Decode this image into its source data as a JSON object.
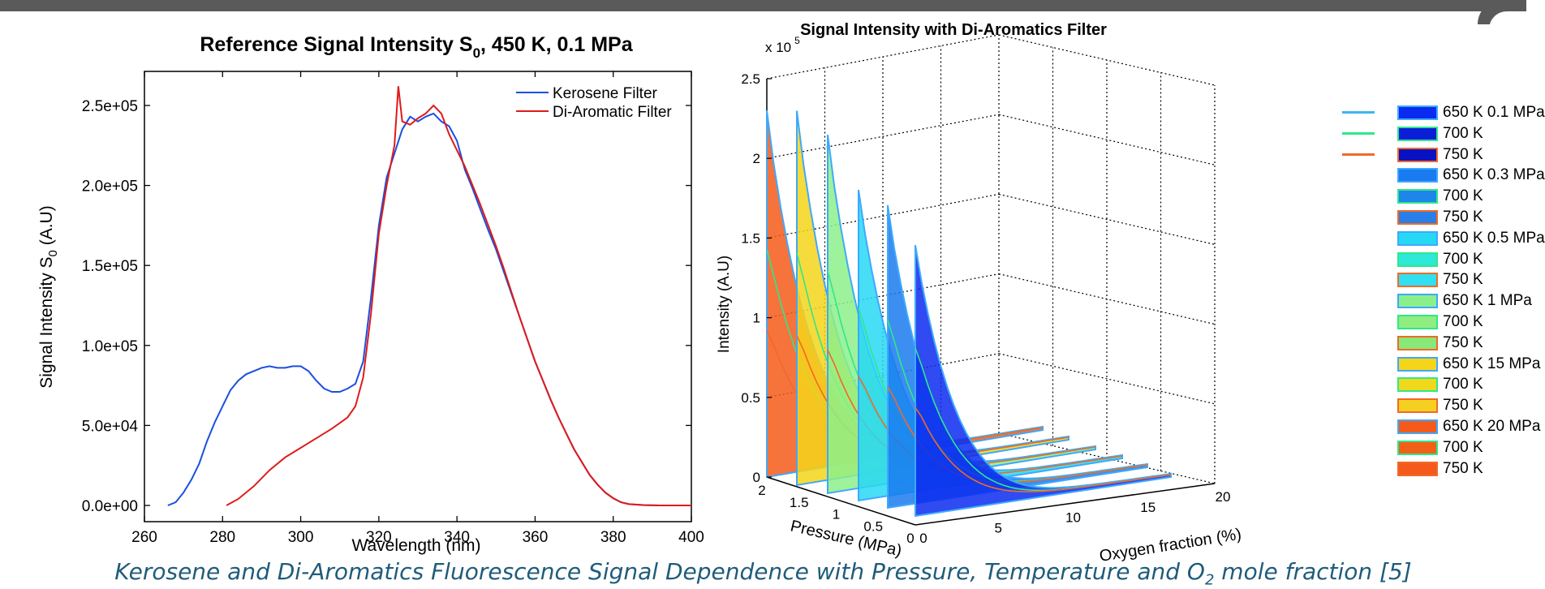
{
  "caption": {
    "text_pre": "Kerosene and Di-Aromatics Fluorescence Signal Dependence with Pressure, Temperature and O",
    "text_sub": "2",
    "text_post": " mole fraction [5]"
  },
  "chart_data": [
    {
      "type": "line",
      "title": "Reference Signal Intensity S",
      "title_sub": "0",
      "title_post": ", 450 K, 0.1 MPa",
      "xlabel": "Wavelength (nm)",
      "ylabel": "Signal Intensity S",
      "ylabel_sub": "0",
      "ylabel_post": " (A.U)",
      "xlim": [
        260,
        400
      ],
      "ylim": [
        0,
        270000
      ],
      "x_ticks": [
        "260",
        "280",
        "300",
        "320",
        "340",
        "360",
        "380",
        "400"
      ],
      "y_ticks": [
        "0.0e+00",
        "5.0e+04",
        "1.0e+05",
        "1.5e+05",
        "2.0e+05",
        "2.5e+05"
      ],
      "legend_position": "top-right",
      "grid": false,
      "series": [
        {
          "name": "Kerosene Filter",
          "color": "#1a4fe0",
          "points": [
            [
              266,
              0
            ],
            [
              268,
              2000
            ],
            [
              270,
              8000
            ],
            [
              272,
              16000
            ],
            [
              274,
              26000
            ],
            [
              276,
              40000
            ],
            [
              278,
              52000
            ],
            [
              280,
              62000
            ],
            [
              282,
              72000
            ],
            [
              284,
              78000
            ],
            [
              286,
              82000
            ],
            [
              288,
              84000
            ],
            [
              290,
              86000
            ],
            [
              292,
              87000
            ],
            [
              294,
              86000
            ],
            [
              296,
              86000
            ],
            [
              298,
              87000
            ],
            [
              300,
              87000
            ],
            [
              302,
              84000
            ],
            [
              304,
              78000
            ],
            [
              306,
              73000
            ],
            [
              308,
              71000
            ],
            [
              310,
              71000
            ],
            [
              312,
              73000
            ],
            [
              314,
              76000
            ],
            [
              316,
              90000
            ],
            [
              318,
              130000
            ],
            [
              320,
              175000
            ],
            [
              322,
              205000
            ],
            [
              324,
              220000
            ],
            [
              326,
              235000
            ],
            [
              328,
              243000
            ],
            [
              330,
              240000
            ],
            [
              332,
              243000
            ],
            [
              334,
              245000
            ],
            [
              336,
              240000
            ],
            [
              338,
              237000
            ],
            [
              340,
              228000
            ],
            [
              342,
              210000
            ],
            [
              344,
              198000
            ],
            [
              346,
              185000
            ],
            [
              348,
              172000
            ],
            [
              350,
              160000
            ],
            [
              352,
              146000
            ],
            [
              354,
              132000
            ],
            [
              356,
              118000
            ],
            [
              358,
              104000
            ],
            [
              360,
              90000
            ],
            [
              362,
              78000
            ],
            [
              364,
              66000
            ],
            [
              366,
              55000
            ],
            [
              368,
              45000
            ],
            [
              370,
              35000
            ],
            [
              372,
              27000
            ],
            [
              374,
              19000
            ],
            [
              376,
              13000
            ],
            [
              378,
              8000
            ],
            [
              380,
              4500
            ],
            [
              382,
              2000
            ],
            [
              384,
              800
            ],
            [
              388,
              200
            ],
            [
              392,
              0
            ],
            [
              400,
              0
            ]
          ]
        },
        {
          "name": "Di-Aromatic Filter",
          "color": "#e01a1a",
          "points": [
            [
              281,
              0
            ],
            [
              284,
              4000
            ],
            [
              288,
              12000
            ],
            [
              292,
              22000
            ],
            [
              296,
              30000
            ],
            [
              300,
              36000
            ],
            [
              304,
              42000
            ],
            [
              308,
              48000
            ],
            [
              312,
              55000
            ],
            [
              314,
              62000
            ],
            [
              316,
              80000
            ],
            [
              318,
              120000
            ],
            [
              320,
              170000
            ],
            [
              322,
              200000
            ],
            [
              324,
              225000
            ],
            [
              325,
              262000
            ],
            [
              326,
              240000
            ],
            [
              328,
              238000
            ],
            [
              330,
              242000
            ],
            [
              332,
              245000
            ],
            [
              334,
              250000
            ],
            [
              336,
              245000
            ],
            [
              338,
              232000
            ],
            [
              340,
              222000
            ],
            [
              342,
              212000
            ],
            [
              344,
              200000
            ],
            [
              346,
              188000
            ],
            [
              348,
              175000
            ],
            [
              350,
              162000
            ],
            [
              352,
              148000
            ],
            [
              354,
              133000
            ],
            [
              356,
              118000
            ],
            [
              358,
              104000
            ],
            [
              360,
              90000
            ],
            [
              362,
              78000
            ],
            [
              364,
              66000
            ],
            [
              366,
              55000
            ],
            [
              368,
              45000
            ],
            [
              370,
              35000
            ],
            [
              372,
              27000
            ],
            [
              374,
              19000
            ],
            [
              376,
              13000
            ],
            [
              378,
              8000
            ],
            [
              380,
              4500
            ],
            [
              382,
              2000
            ],
            [
              384,
              800
            ],
            [
              388,
              200
            ],
            [
              392,
              0
            ],
            [
              400,
              0
            ]
          ]
        }
      ]
    },
    {
      "type": "area",
      "title": "Signal Intensity with Di-Aromatics Filter",
      "zlabel": "Intensity (A.U)",
      "z_multiplier": "x 10",
      "z_multiplier_exp": "5",
      "pressure_label": "Pressure (MPa)",
      "oxygen_label": "Oxygen fraction (%)",
      "z_ticks": [
        "0",
        "0.5",
        "1",
        "1.5",
        "2",
        "2.5"
      ],
      "pressure_ticks": [
        "2",
        "1.5",
        "1",
        "0.5",
        "0"
      ],
      "oxygen_ticks": [
        "0",
        "5",
        "10",
        "15",
        "20"
      ],
      "zlim": [
        0,
        2.5
      ],
      "grid": true,
      "legend_position": "right",
      "slice_peaks": [
        2.3,
        2.35,
        2.25,
        1.95,
        1.9,
        1.7
      ],
      "lines_legend": [
        {
          "color": "#3db5f0"
        },
        {
          "color": "#2ee88a"
        },
        {
          "color": "#f06a28"
        }
      ],
      "legend": [
        {
          "label": "650 K 0.1 MPa",
          "fill": "#0a2bef",
          "border": "#3da9ff"
        },
        {
          "label": "700 K",
          "fill": "#0a1ed8",
          "border": "#2ee88a"
        },
        {
          "label": "750 K",
          "fill": "#0812c2",
          "border": "#f06a28"
        },
        {
          "label": "650 K 0.3 MPa",
          "fill": "#1a7aef",
          "border": "#3da9ff"
        },
        {
          "label": "700 K",
          "fill": "#1e86ea",
          "border": "#2ee88a"
        },
        {
          "label": "750 K",
          "fill": "#2a7ee8",
          "border": "#f06a28"
        },
        {
          "label": "650 K 0.5 MPa",
          "fill": "#27d8f5",
          "border": "#3da9ff"
        },
        {
          "label": "700 K",
          "fill": "#2ee8d8",
          "border": "#2ee88a"
        },
        {
          "label": "750 K",
          "fill": "#30e0f0",
          "border": "#f06a28"
        },
        {
          "label": "650 K 1 MPa",
          "fill": "#8cf08a",
          "border": "#3da9ff"
        },
        {
          "label": "700 K",
          "fill": "#90ee80",
          "border": "#2ee88a"
        },
        {
          "label": "750 K",
          "fill": "#88e878",
          "border": "#f06a28"
        },
        {
          "label": "650 K 15 MPa",
          "fill": "#f5d51a",
          "border": "#3da9ff"
        },
        {
          "label": "700 K",
          "fill": "#f0d81c",
          "border": "#2ee88a"
        },
        {
          "label": "750 K",
          "fill": "#f5d020",
          "border": "#f06a28"
        },
        {
          "label": "650 K 20 MPa",
          "fill": "#f55a1a",
          "border": "#3da9ff"
        },
        {
          "label": "700 K",
          "fill": "#f26018",
          "border": "#2ee88a"
        },
        {
          "label": "750 K",
          "fill": "#f35a1c",
          "border": "#f06a28"
        }
      ]
    }
  ]
}
